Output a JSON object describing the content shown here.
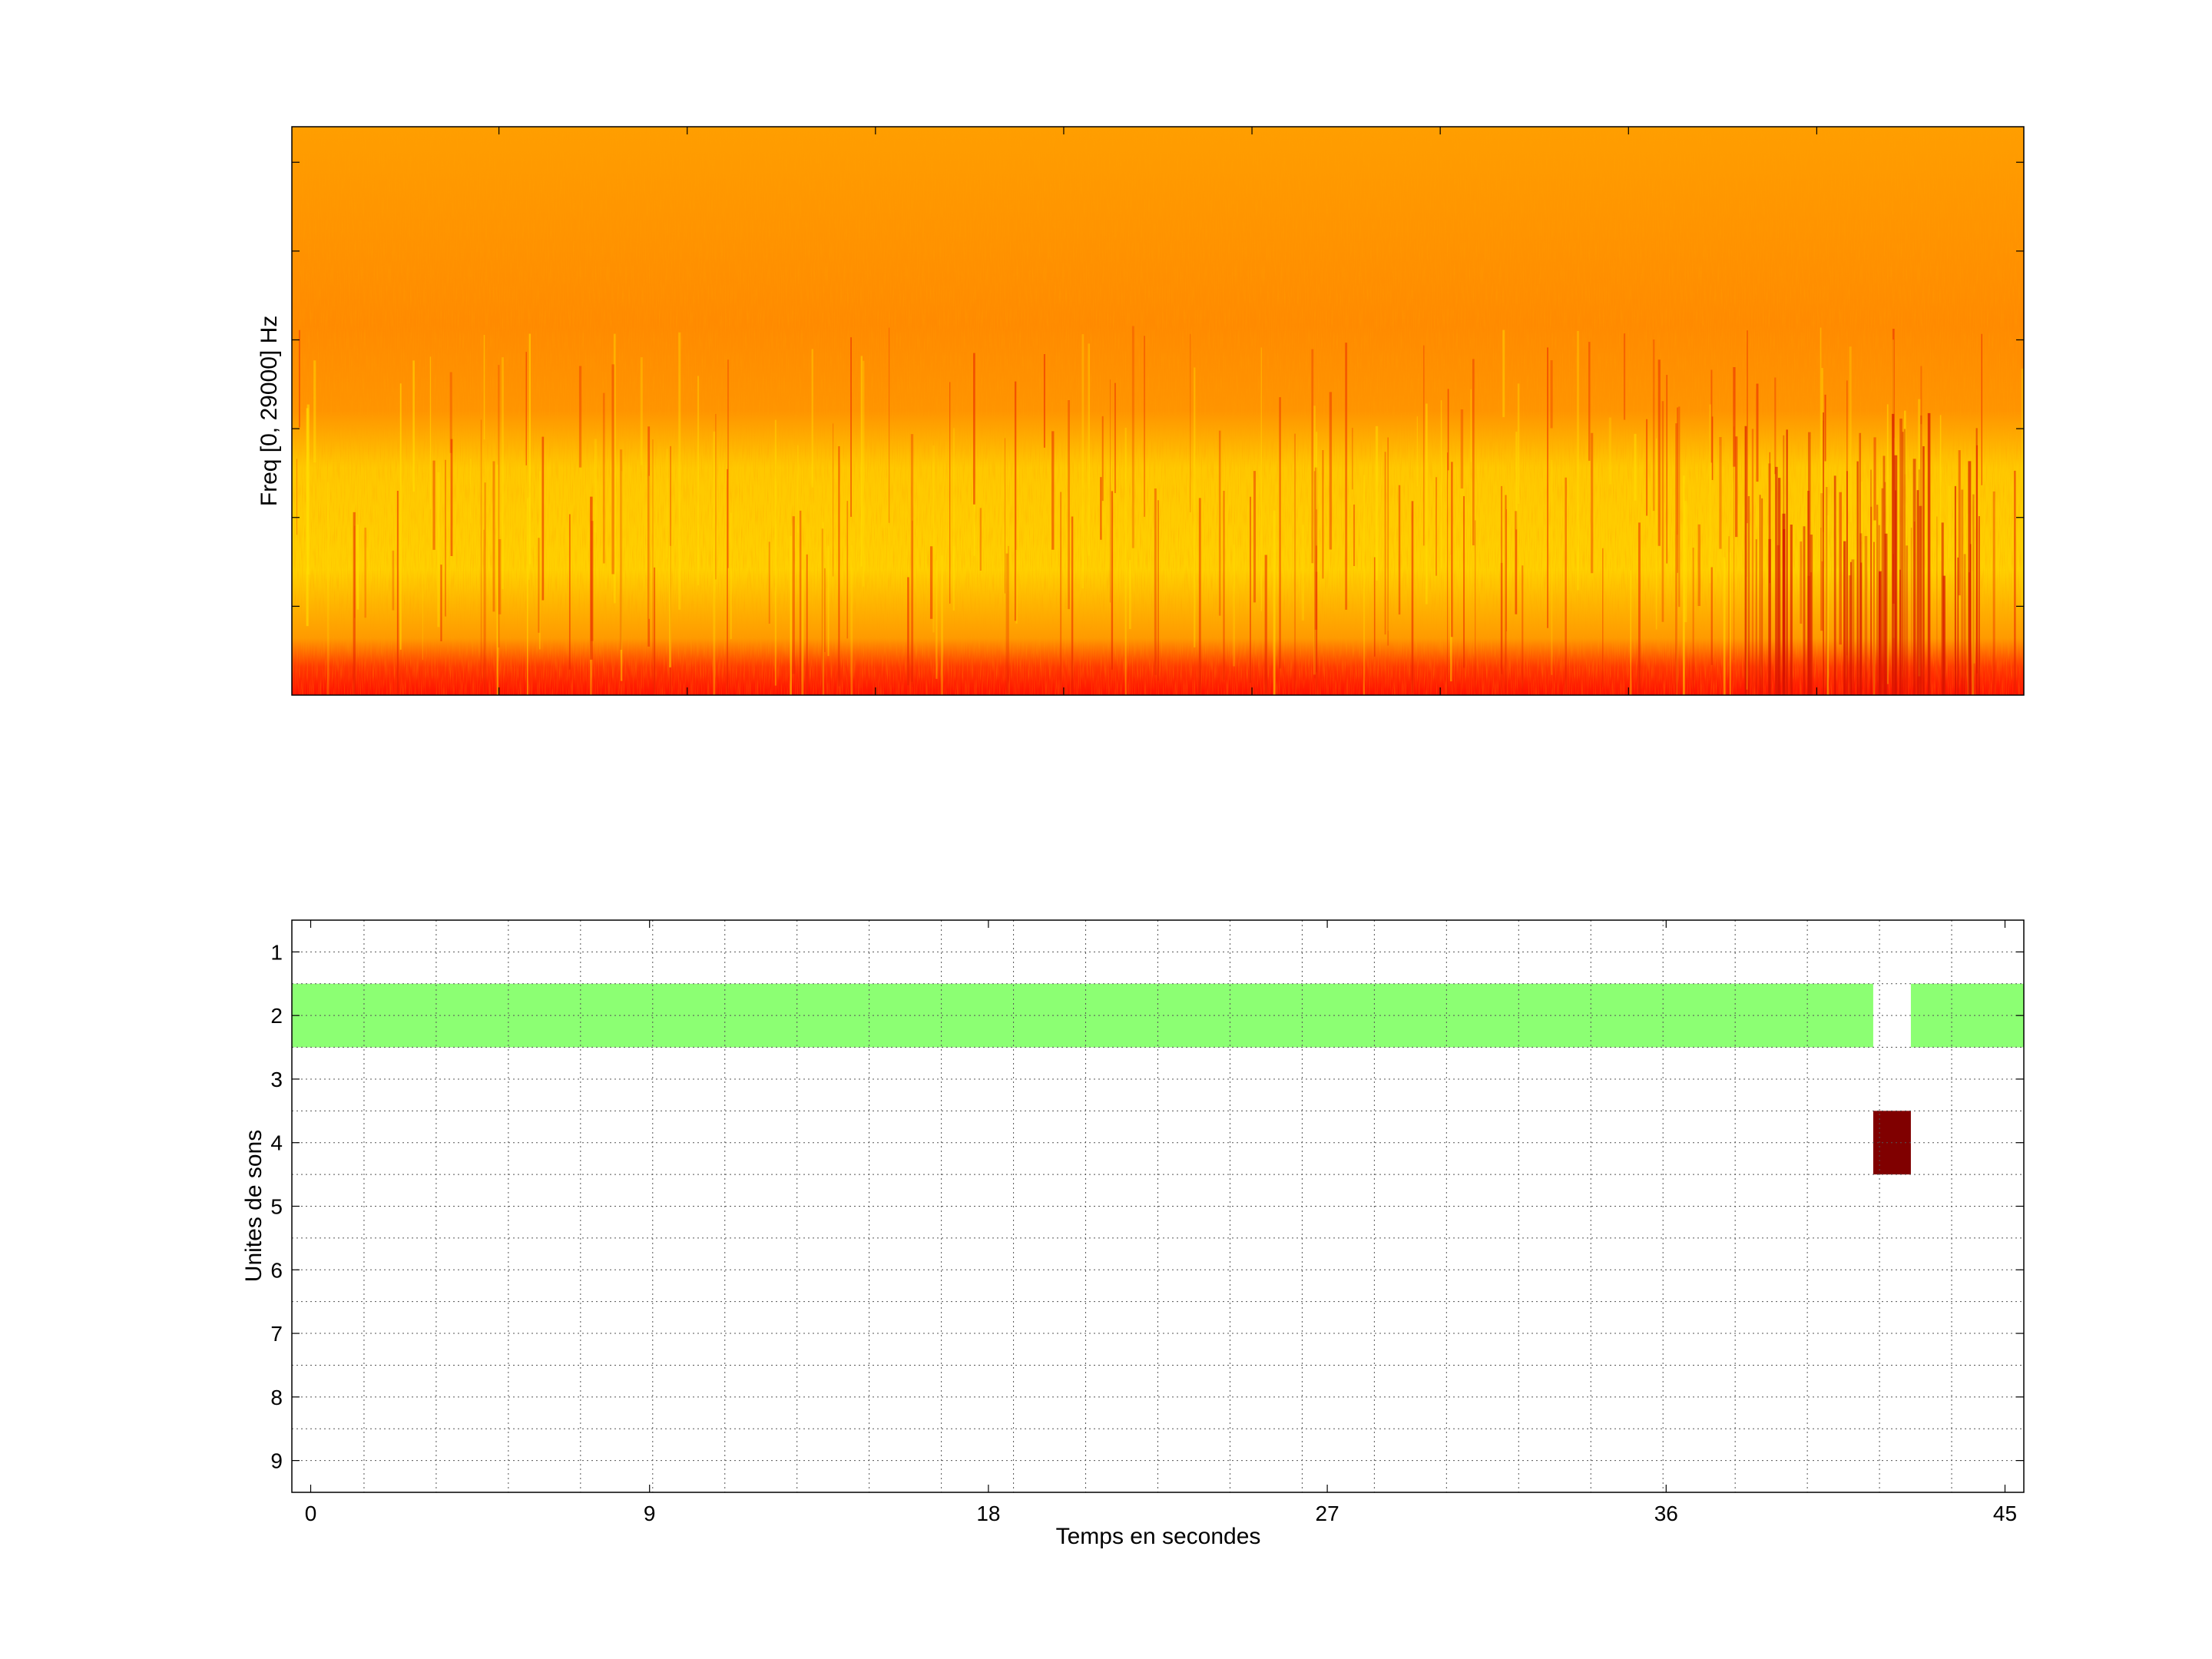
{
  "chart_data": [
    {
      "type": "heatmap",
      "title": "",
      "xlabel": "",
      "ylabel": "Freq [0, 29000] Hz",
      "xlim": [
        -0.5,
        45.5
      ],
      "ylim": [
        0,
        29000
      ],
      "x_tick_labels": [],
      "y_tick_labels": [],
      "colormap": [
        "#ff0000",
        "#ff8c00",
        "#ffff00"
      ],
      "description_bands": [
        {
          "freq_range": [
            0,
            1800
          ],
          "level": "high",
          "color": "#ff2a00"
        },
        {
          "freq_range": [
            1800,
            13000
          ],
          "level": "medium",
          "color": "#ffc000"
        },
        {
          "freq_range": [
            13000,
            29000
          ],
          "level": "low",
          "color": "#ff9a00"
        }
      ],
      "grid": false
    },
    {
      "type": "heatmap",
      "title": "",
      "xlabel": "Temps en secondes",
      "ylabel": "Unites de sons",
      "xlim": [
        -0.5,
        45.5
      ],
      "ylim": [
        0.5,
        9.5
      ],
      "x_ticks": [
        0,
        9,
        18,
        27,
        36,
        45
      ],
      "x_tick_labels": [
        "0",
        "9",
        "18",
        "27",
        "36",
        "45"
      ],
      "y_ticks": [
        1,
        2,
        3,
        4,
        5,
        6,
        7,
        8,
        9
      ],
      "y_tick_labels": [
        "1",
        "2",
        "3",
        "4",
        "5",
        "6",
        "7",
        "8",
        "9"
      ],
      "grid": true,
      "cells": [
        {
          "unit": 2,
          "t_start": -0.5,
          "t_end": 41.5,
          "color": "#8cff73"
        },
        {
          "unit": 2,
          "t_start": 42.5,
          "t_end": 45.5,
          "color": "#8cff73"
        },
        {
          "unit": 4,
          "t_start": 41.5,
          "t_end": 42.5,
          "color": "#800000"
        }
      ]
    }
  ]
}
